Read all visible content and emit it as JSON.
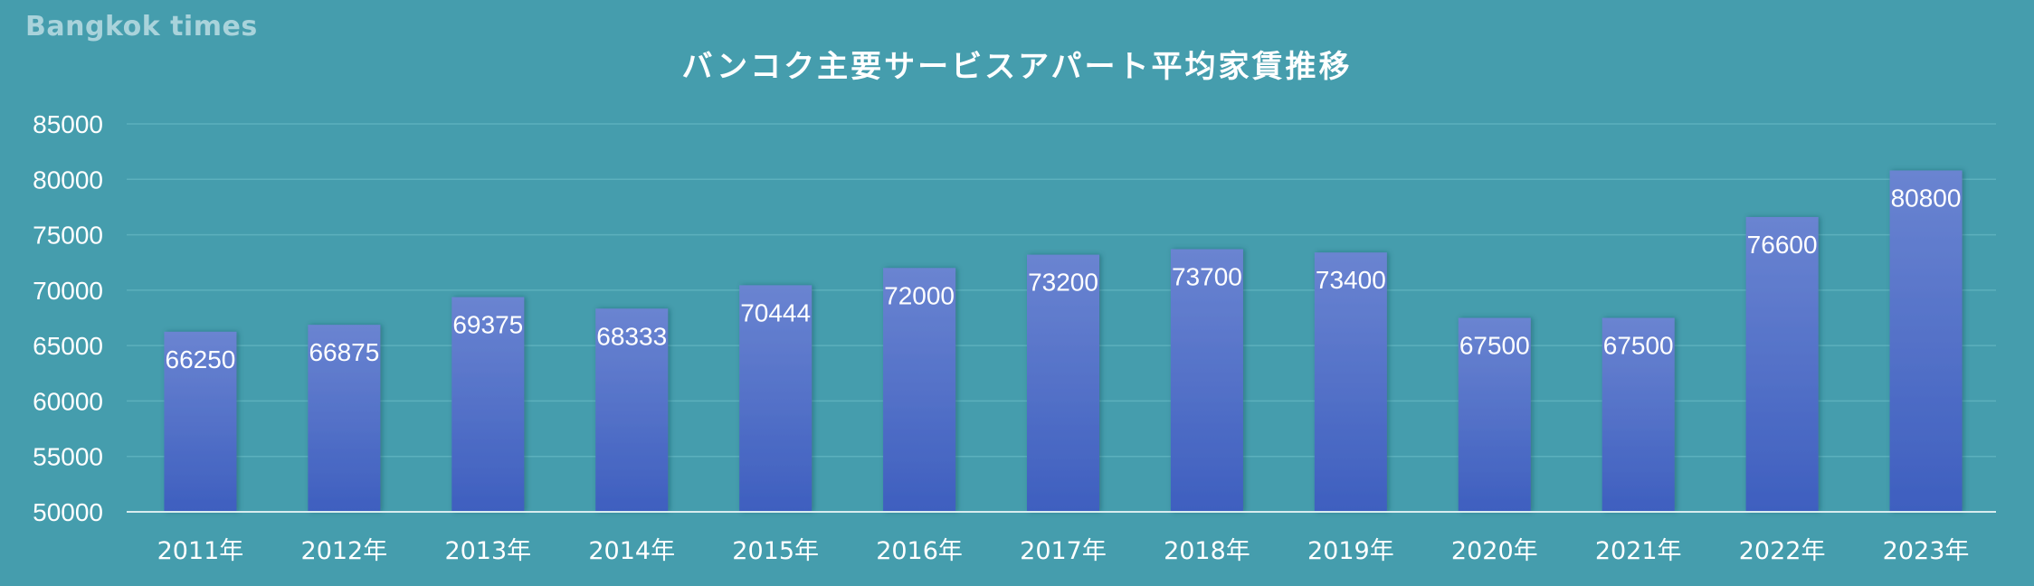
{
  "watermark": "Bangkok times",
  "colors": {
    "background": "#459dad",
    "bar_top": "#6a84d1",
    "bar_bottom": "#3e5fbf",
    "grid": "#5cb0bd",
    "axis": "#d8ecef",
    "text": "#ffffff"
  },
  "chart_data": {
    "type": "bar",
    "title": "バンコク主要サービスアパート平均家賃推移",
    "xlabel": "",
    "ylabel": "",
    "categories": [
      "2011年",
      "2012年",
      "2013年",
      "2014年",
      "2015年",
      "2016年",
      "2017年",
      "2018年",
      "2019年",
      "2020年",
      "2021年",
      "2022年",
      "2023年"
    ],
    "values": [
      66250,
      66875,
      69375,
      68333,
      70444,
      72000,
      73200,
      73700,
      73400,
      67500,
      67500,
      76600,
      80800
    ],
    "ylim": [
      50000,
      85000
    ],
    "yticks": [
      50000,
      55000,
      60000,
      65000,
      70000,
      75000,
      80000,
      85000
    ],
    "grid": true,
    "legend": "none",
    "data_labels": true
  }
}
